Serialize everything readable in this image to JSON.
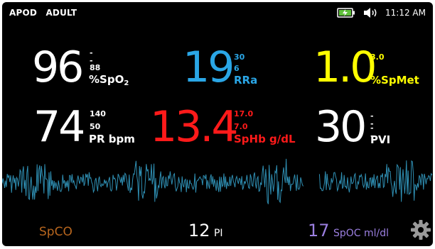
{
  "status": {
    "mode": "APOD",
    "patient": "ADULT",
    "time": "11:12 AM",
    "icons": [
      "battery-charging-icon",
      "speaker-icon"
    ]
  },
  "params": {
    "spo2": {
      "value": "96",
      "high": "--",
      "low": "88",
      "label": "%SpO",
      "sub": "2",
      "color": "#ffffff"
    },
    "rra": {
      "value": "19",
      "high": "30",
      "low": "6",
      "label": "RRa",
      "color": "#2aa6e6"
    },
    "spmet": {
      "value": "1.0",
      "high": "3.0",
      "low": "--",
      "label": "%SpMet",
      "color": "#ffff00"
    },
    "pr": {
      "value": "74",
      "high": "140",
      "low": "50",
      "label": "PR bpm",
      "color": "#ffffff"
    },
    "sphb": {
      "value": "13.4",
      "high": "17.0",
      "low": "7.0",
      "label": "SpHb g/dL",
      "color": "#ff1a1a"
    },
    "pvi": {
      "value": "30",
      "high": "--",
      "low": "--",
      "label": "PVI",
      "color": "#ffffff"
    }
  },
  "bottom": {
    "spco": {
      "label": "SpCO",
      "color": "#b8661e"
    },
    "pi": {
      "value": "12",
      "label": "PI",
      "color": "#ffffff"
    },
    "spoc": {
      "value": "17",
      "label": "SpOC ml/dl",
      "color": "#9b7fe0"
    },
    "settings_icon": "gear-icon"
  },
  "waveform": {
    "color": "#2f8fb3"
  }
}
